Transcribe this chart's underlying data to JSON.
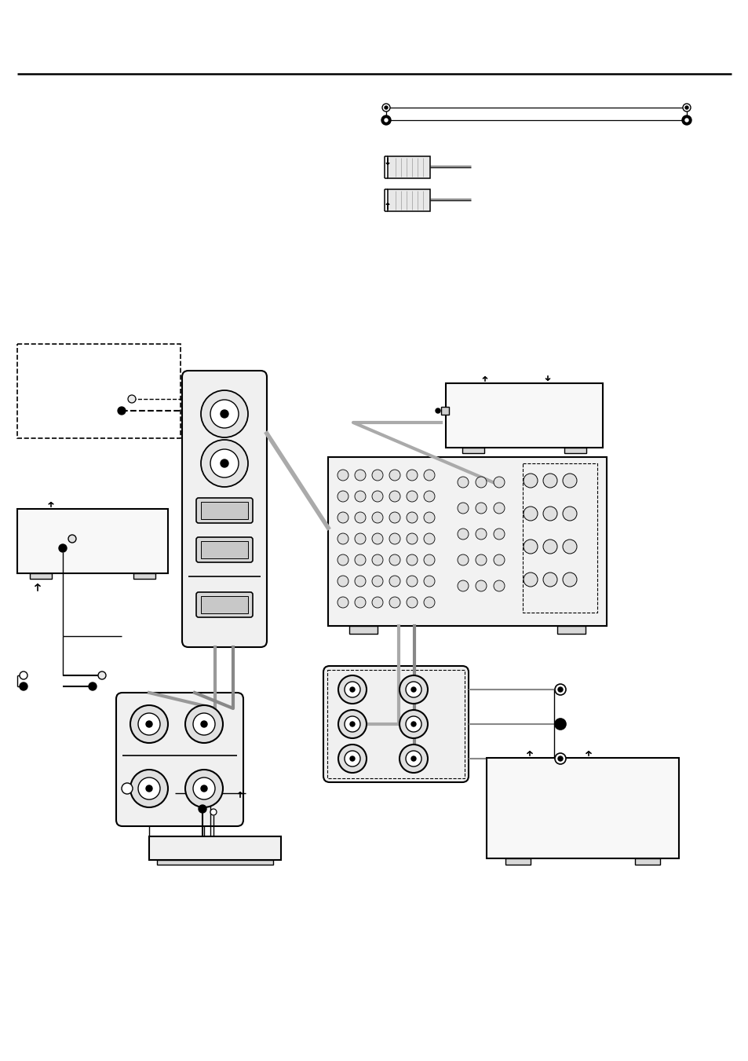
{
  "bg": "#ffffff",
  "lc": "#000000",
  "gc": "#aaaaaa",
  "mgc": "#888888",
  "lgc": "#cccccc",
  "fw": 9.54,
  "fh": 13.51
}
